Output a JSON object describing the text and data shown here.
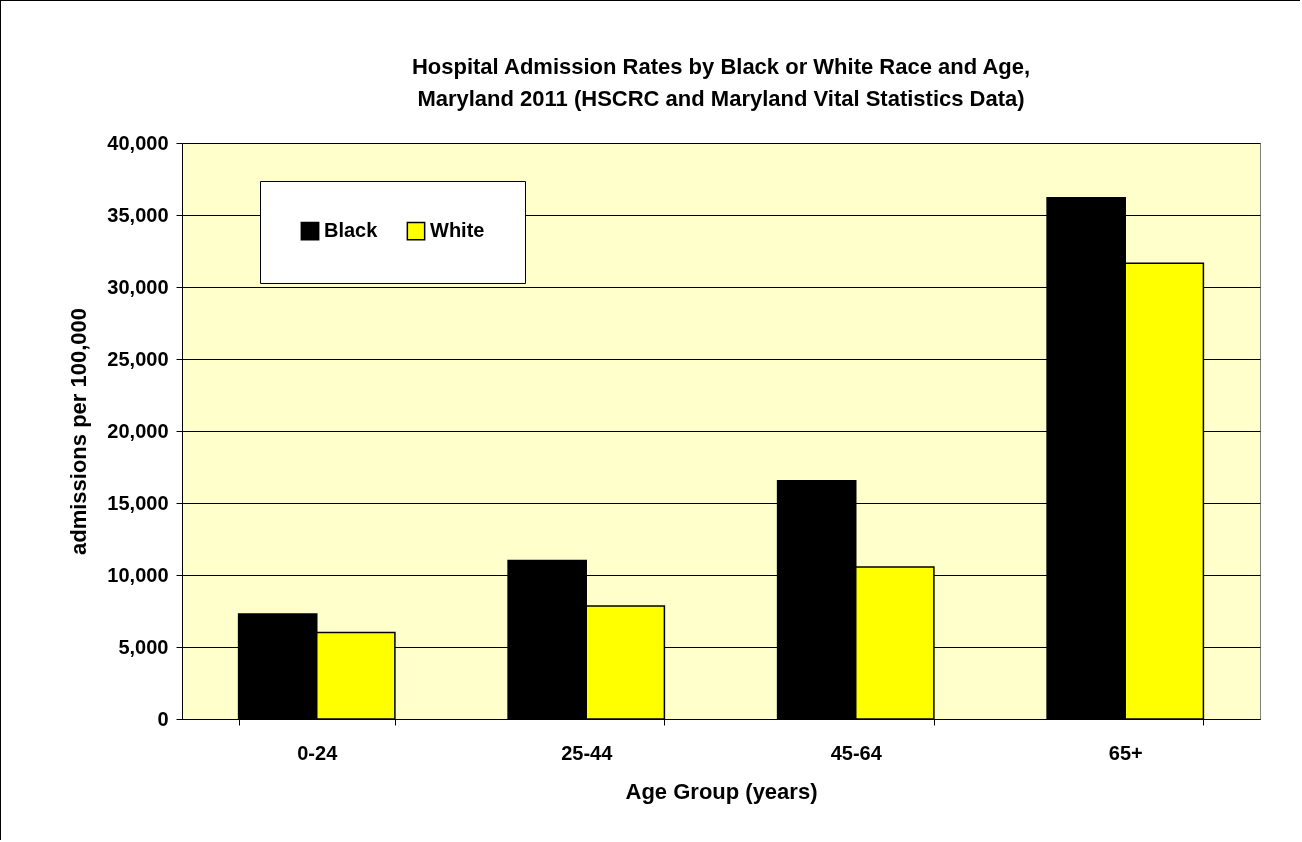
{
  "chart_data": {
    "type": "bar",
    "title": "Hospital Admission Rates by Black or White Race and Age, Maryland 2011 (HSCRC and Maryland Vital Statistics Data)",
    "xlabel": "Age Group (years)",
    "ylabel": "admissions per 100,000",
    "categories": [
      "0-24",
      "25-44",
      "45-64",
      "65+"
    ],
    "series": [
      {
        "name": "Black",
        "color": "#000000",
        "values": [
          7300,
          11000,
          16550,
          36200
        ]
      },
      {
        "name": "White",
        "color": "#ffff00",
        "values": [
          6000,
          7850,
          10550,
          31650
        ]
      }
    ],
    "ylim": [
      0,
      40000
    ],
    "yticks": [
      {
        "value": 0,
        "label": "0"
      },
      {
        "value": 5000,
        "label": "5,000"
      },
      {
        "value": 10000,
        "label": "10,000"
      },
      {
        "value": 15000,
        "label": "15,000"
      },
      {
        "value": 20000,
        "label": "20,000"
      },
      {
        "value": 25000,
        "label": "25,000"
      },
      {
        "value": 30000,
        "label": "30,000"
      },
      {
        "value": 35000,
        "label": "35,000"
      },
      {
        "value": 40000,
        "label": "40,000"
      }
    ],
    "grid": "y",
    "legend": "top left"
  }
}
